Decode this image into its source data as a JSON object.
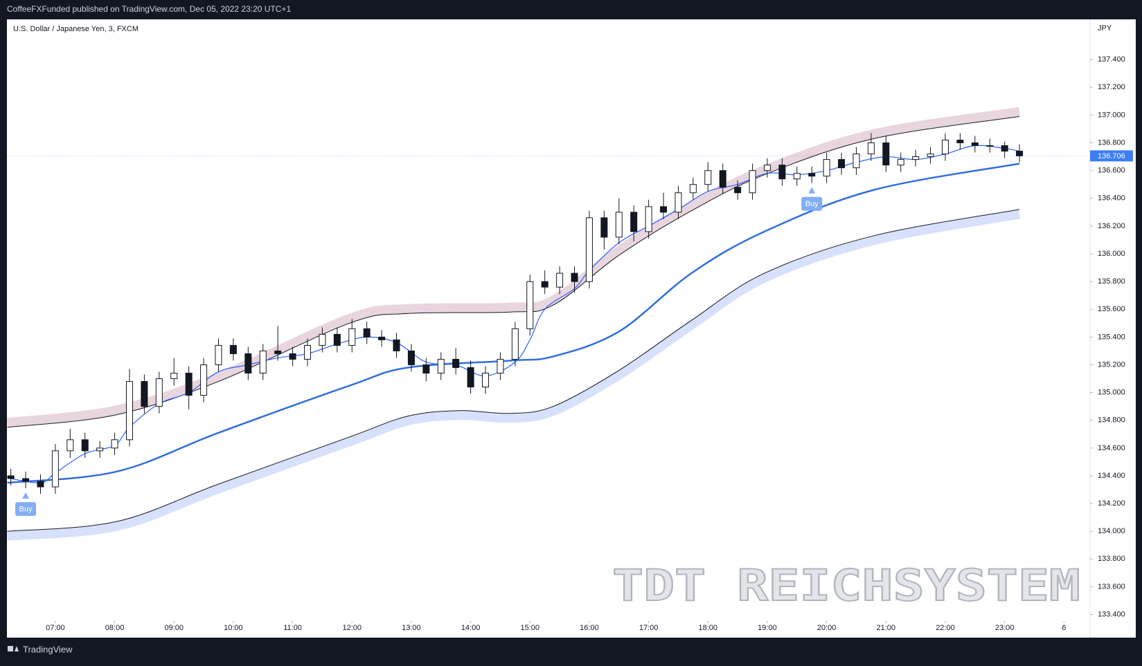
{
  "header": "CoffeeFXFunded published on TradingView.com, Dec 05, 2022 23:20 UTC+1",
  "footer": "TradingView",
  "chart_data": {
    "type": "candlestick",
    "title": "U.S. Dollar / Japanese Yen, 3, FXCM",
    "y_axis_label": "JPY",
    "watermark": "TDT REICHSYSTEM",
    "up_color": "#ffffff",
    "down_color": "#131722",
    "price_label_color": "#3d7ef7",
    "grid": false,
    "xlim": [
      6.19,
      24.44
    ],
    "ylim": [
      133.363,
      137.688
    ],
    "xticks": [
      {
        "value": 7,
        "label": "07:00"
      },
      {
        "value": 8,
        "label": "08:00"
      },
      {
        "value": 9,
        "label": "09:00"
      },
      {
        "value": 10,
        "label": "10:00"
      },
      {
        "value": 11,
        "label": "11:00"
      },
      {
        "value": 12,
        "label": "12:00"
      },
      {
        "value": 13,
        "label": "13:00"
      },
      {
        "value": 14,
        "label": "14:00"
      },
      {
        "value": 15,
        "label": "15:00"
      },
      {
        "value": 16,
        "label": "16:00"
      },
      {
        "value": 17,
        "label": "17:00"
      },
      {
        "value": 18,
        "label": "18:00"
      },
      {
        "value": 19,
        "label": "19:00"
      },
      {
        "value": 20,
        "label": "20:00"
      },
      {
        "value": 21,
        "label": "21:00"
      },
      {
        "value": 22,
        "label": "22:00"
      },
      {
        "value": 23,
        "label": "23:00"
      },
      {
        "value": 24,
        "label": "6"
      }
    ],
    "yticks": [
      {
        "value": 133.4,
        "label": "133.400"
      },
      {
        "value": 133.6,
        "label": "133.600"
      },
      {
        "value": 133.8,
        "label": "133.800"
      },
      {
        "value": 134.0,
        "label": "134.000"
      },
      {
        "value": 134.2,
        "label": "134.200"
      },
      {
        "value": 134.4,
        "label": "134.400"
      },
      {
        "value": 134.6,
        "label": "134.600"
      },
      {
        "value": 134.8,
        "label": "134.800"
      },
      {
        "value": 135.0,
        "label": "135.000"
      },
      {
        "value": 135.2,
        "label": "135.200"
      },
      {
        "value": 135.4,
        "label": "135.400"
      },
      {
        "value": 135.6,
        "label": "135.600"
      },
      {
        "value": 135.8,
        "label": "135.800"
      },
      {
        "value": 136.0,
        "label": "136.000"
      },
      {
        "value": 136.2,
        "label": "136.200"
      },
      {
        "value": 136.4,
        "label": "136.400"
      },
      {
        "value": 136.6,
        "label": "136.600"
      },
      {
        "value": 136.8,
        "label": "136.800"
      },
      {
        "value": 137.0,
        "label": "137.000"
      },
      {
        "value": 137.2,
        "label": "137.200"
      },
      {
        "value": 137.4,
        "label": "137.400"
      }
    ],
    "x": [
      6.25,
      6.5,
      6.75,
      7.0,
      7.25,
      7.5,
      7.75,
      8.0,
      8.25,
      8.5,
      8.75,
      9.0,
      9.25,
      9.5,
      9.75,
      10.0,
      10.25,
      10.5,
      10.75,
      11.0,
      11.25,
      11.5,
      11.75,
      12.0,
      12.25,
      12.5,
      12.75,
      13.0,
      13.25,
      13.5,
      13.75,
      14.0,
      14.25,
      14.5,
      14.75,
      15.0,
      15.25,
      15.5,
      15.75,
      16.0,
      16.25,
      16.5,
      16.75,
      17.0,
      17.25,
      17.5,
      17.75,
      18.0,
      18.25,
      18.5,
      18.75,
      19.0,
      19.25,
      19.5,
      19.75,
      20.0,
      20.25,
      20.5,
      20.75,
      21.0,
      21.25,
      21.5,
      21.75,
      22.0,
      22.25,
      22.5,
      22.75,
      23.0,
      23.25
    ],
    "open": [
      134.4,
      134.38,
      134.36,
      134.32,
      134.58,
      134.66,
      134.58,
      134.6,
      134.66,
      135.08,
      134.9,
      135.1,
      135.14,
      134.98,
      135.2,
      135.34,
      135.28,
      135.14,
      135.3,
      135.28,
      135.24,
      135.34,
      135.42,
      135.34,
      135.46,
      135.4,
      135.38,
      135.3,
      135.2,
      135.14,
      135.24,
      135.18,
      135.04,
      135.14,
      135.24,
      135.46,
      135.8,
      135.76,
      135.86,
      135.8,
      136.26,
      136.12,
      136.3,
      136.16,
      136.34,
      136.3,
      136.44,
      136.5,
      136.6,
      136.48,
      136.44,
      136.6,
      136.64,
      136.54,
      136.58,
      136.56,
      136.68,
      136.62,
      136.72,
      136.8,
      136.64,
      136.68,
      136.7,
      136.72,
      136.82,
      136.8,
      136.78,
      136.78,
      136.74
    ],
    "high": [
      134.45,
      134.43,
      134.41,
      134.63,
      134.74,
      134.71,
      134.65,
      134.71,
      135.17,
      135.13,
      135.15,
      135.25,
      135.19,
      135.25,
      135.39,
      135.39,
      135.33,
      135.35,
      135.48,
      135.33,
      135.39,
      135.47,
      135.47,
      135.53,
      135.51,
      135.45,
      135.43,
      135.35,
      135.25,
      135.29,
      135.32,
      135.23,
      135.19,
      135.29,
      135.51,
      135.85,
      135.88,
      135.91,
      135.91,
      136.31,
      136.31,
      136.4,
      136.35,
      136.39,
      136.44,
      136.49,
      136.55,
      136.66,
      136.65,
      136.53,
      136.65,
      136.69,
      136.69,
      136.63,
      136.63,
      136.73,
      136.73,
      136.77,
      136.87,
      136.85,
      136.73,
      136.75,
      136.77,
      136.87,
      136.87,
      136.85,
      136.83,
      136.81,
      136.79
    ],
    "low": [
      134.33,
      134.31,
      134.27,
      134.27,
      134.53,
      134.53,
      134.53,
      134.55,
      134.61,
      134.85,
      134.85,
      135.05,
      134.88,
      134.93,
      135.15,
      135.23,
      135.09,
      135.09,
      135.23,
      135.19,
      135.19,
      135.29,
      135.29,
      135.29,
      135.35,
      135.33,
      135.25,
      135.15,
      135.08,
      135.09,
      135.13,
      134.99,
      134.99,
      135.09,
      135.19,
      135.41,
      135.71,
      135.71,
      135.72,
      135.75,
      136.03,
      136.07,
      136.09,
      136.11,
      136.25,
      136.25,
      136.39,
      136.45,
      136.43,
      136.39,
      136.39,
      136.55,
      136.49,
      136.49,
      136.51,
      136.51,
      136.57,
      136.57,
      136.67,
      136.59,
      136.59,
      136.63,
      136.65,
      136.67,
      136.75,
      136.73,
      136.73,
      136.69,
      136.66
    ],
    "close": [
      134.38,
      134.36,
      134.32,
      134.58,
      134.66,
      134.58,
      134.6,
      134.66,
      135.08,
      134.9,
      135.1,
      135.14,
      134.98,
      135.2,
      135.34,
      135.28,
      135.14,
      135.3,
      135.28,
      135.24,
      135.34,
      135.42,
      135.34,
      135.46,
      135.4,
      135.38,
      135.3,
      135.2,
      135.14,
      135.24,
      135.18,
      135.04,
      135.14,
      135.24,
      135.46,
      135.8,
      135.76,
      135.86,
      135.8,
      136.26,
      136.12,
      136.3,
      136.16,
      136.34,
      136.3,
      136.44,
      136.5,
      136.6,
      136.48,
      136.44,
      136.6,
      136.64,
      136.54,
      136.58,
      136.56,
      136.68,
      136.62,
      136.72,
      136.8,
      136.64,
      136.68,
      136.7,
      136.72,
      136.82,
      136.8,
      136.78,
      136.78,
      136.74,
      136.706
    ],
    "lines": [
      {
        "color": "#131722",
        "width": 1,
        "band_color": "#e9d5de",
        "band_side": "above",
        "x": [
          6.19,
          8.03,
          9.75,
          11.96,
          12.94,
          14.66,
          15.39,
          16.5,
          17.72,
          18.95,
          20.79,
          23.25
        ],
        "values": [
          134.75,
          134.84,
          135.08,
          135.5,
          135.57,
          135.58,
          135.63,
          135.99,
          136.31,
          136.57,
          136.83,
          136.99
        ]
      },
      {
        "color": "#131722",
        "width": 1,
        "band_color": "#d7e1fb",
        "band_side": "below",
        "x": [
          6.19,
          8.03,
          9.75,
          11.96,
          12.94,
          13.8,
          14.66,
          15.39,
          16.5,
          17.72,
          18.95,
          20.79,
          23.25
        ],
        "values": [
          134.0,
          134.07,
          134.34,
          134.68,
          134.83,
          134.87,
          134.85,
          134.9,
          135.16,
          135.52,
          135.86,
          136.13,
          136.32
        ]
      },
      {
        "color": "#2f6fdc",
        "width": 2.5,
        "x": [
          6.19,
          8.03,
          9.75,
          11.96,
          12.94,
          14.66,
          15.39,
          16.5,
          17.72,
          18.95,
          20.79,
          23.25
        ],
        "values": [
          134.35,
          134.43,
          134.71,
          135.05,
          135.18,
          135.23,
          135.26,
          135.44,
          135.86,
          136.16,
          136.46,
          136.65
        ]
      },
      {
        "color": "#2962ff",
        "width": 1.2,
        "x": [
          6.25,
          6.75,
          7.0,
          7.5,
          8.0,
          8.25,
          8.75,
          9.25,
          9.75,
          10.25,
          10.75,
          11.25,
          11.75,
          12.25,
          12.75,
          13.25,
          13.75,
          14.25,
          14.75,
          15.0,
          15.25,
          15.75,
          16.0,
          16.5,
          17.0,
          17.5,
          18.0,
          18.5,
          19.0,
          19.5,
          20.0,
          20.5,
          21.0,
          21.5,
          22.0,
          22.5,
          23.0,
          23.25
        ],
        "values": [
          134.38,
          134.35,
          134.42,
          134.56,
          134.62,
          134.75,
          134.92,
          135.0,
          135.15,
          135.2,
          135.25,
          135.28,
          135.35,
          135.4,
          135.36,
          135.22,
          135.2,
          135.12,
          135.22,
          135.38,
          135.6,
          135.75,
          135.88,
          136.08,
          136.2,
          136.32,
          136.45,
          136.5,
          136.58,
          136.57,
          136.6,
          136.66,
          136.7,
          136.68,
          136.72,
          136.78,
          136.76,
          136.74
        ]
      }
    ],
    "signals": [
      {
        "label": "Buy",
        "x": 6.5
      },
      {
        "label": "Buy",
        "x": 19.75
      }
    ]
  }
}
